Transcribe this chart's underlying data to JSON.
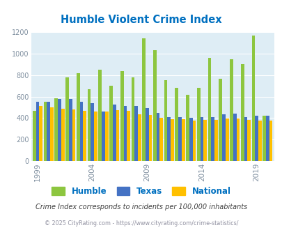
{
  "title": "Humble Violent Crime Index",
  "years": [
    1999,
    2000,
    2001,
    2002,
    2003,
    2004,
    2005,
    2006,
    2007,
    2008,
    2009,
    2010,
    2011,
    2012,
    2013,
    2014,
    2015,
    2016,
    2017,
    2018,
    2019,
    2020
  ],
  "humble": [
    470,
    550,
    585,
    780,
    820,
    670,
    850,
    700,
    835,
    780,
    1140,
    1035,
    750,
    685,
    620,
    680,
    960,
    765,
    945,
    905,
    1170,
    420
  ],
  "texas": [
    550,
    555,
    580,
    580,
    555,
    540,
    460,
    525,
    510,
    510,
    495,
    450,
    410,
    410,
    405,
    410,
    410,
    435,
    440,
    410,
    420,
    420
  ],
  "national": [
    510,
    500,
    490,
    480,
    470,
    460,
    460,
    475,
    465,
    435,
    430,
    400,
    390,
    390,
    375,
    380,
    385,
    395,
    395,
    380,
    375,
    375
  ],
  "humble_color": "#8dc63f",
  "texas_color": "#4472c4",
  "national_color": "#ffc000",
  "bg_color": "#deedf5",
  "title_color": "#0070c0",
  "tick_label_color": "#8090a0",
  "footnote1_color": "#404040",
  "footnote2_color": "#9090a0",
  "footnote1": "Crime Index corresponds to incidents per 100,000 inhabitants",
  "footnote2": "© 2025 CityRating.com - https://www.cityrating.com/crime-statistics/",
  "xtick_years": [
    1999,
    2004,
    2009,
    2014,
    2019
  ],
  "ylim": [
    0,
    1200
  ],
  "yticks": [
    0,
    200,
    400,
    600,
    800,
    1000,
    1200
  ]
}
